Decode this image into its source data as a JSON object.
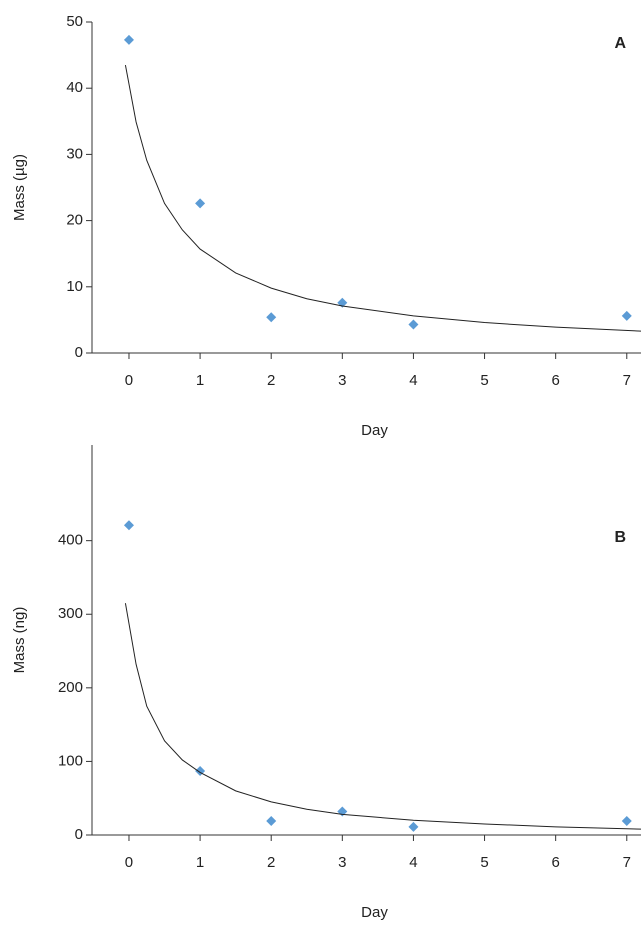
{
  "chart_data": [
    {
      "type": "scatter",
      "annotation": "A",
      "xlabel": "Day",
      "ylabel": "Mass (µg)",
      "xlim": [
        -0.52,
        7.2
      ],
      "xticks": [
        0,
        1,
        2,
        3,
        4,
        5,
        6,
        7
      ],
      "ylim": [
        0,
        50
      ],
      "yticks": [
        0,
        10,
        20,
        30,
        40,
        50
      ],
      "series": [
        {
          "type": "scatter",
          "color": "#5b9bd5",
          "x": [
            0,
            1,
            2,
            3,
            4,
            7
          ],
          "values": [
            47.3,
            22.6,
            5.4,
            7.6,
            4.3,
            5.6
          ]
        },
        {
          "type": "line",
          "color": "#222222",
          "x": [
            -0.05,
            0.1,
            0.25,
            0.5,
            0.75,
            1,
            1.5,
            2,
            2.5,
            3,
            4,
            5,
            6,
            7.2
          ],
          "values": [
            43.5,
            34.9,
            29.1,
            22.6,
            18.6,
            15.7,
            12.1,
            9.8,
            8.2,
            7.1,
            5.6,
            4.6,
            3.9,
            3.3
          ]
        }
      ]
    },
    {
      "type": "scatter",
      "annotation": "B",
      "xlabel": "Day",
      "ylabel": "Mass (ng)",
      "xlim": [
        -0.52,
        7.2
      ],
      "xticks": [
        0,
        1,
        2,
        3,
        4,
        5,
        6,
        7
      ],
      "ylim": [
        0,
        530
      ],
      "yticks": [
        0,
        100,
        200,
        300,
        400
      ],
      "series": [
        {
          "type": "scatter",
          "color": "#5b9bd5",
          "x": [
            0,
            1,
            2,
            3,
            4,
            7
          ],
          "values": [
            421,
            87,
            19,
            32,
            11,
            19
          ]
        },
        {
          "type": "line",
          "color": "#222222",
          "x": [
            -0.05,
            0.1,
            0.25,
            0.5,
            0.75,
            1,
            1.5,
            2,
            2.5,
            3,
            4,
            5,
            6,
            7.2
          ],
          "values": [
            315,
            232,
            175,
            128,
            102,
            85,
            60,
            45,
            35,
            28,
            20,
            15,
            11,
            8
          ]
        }
      ]
    }
  ]
}
